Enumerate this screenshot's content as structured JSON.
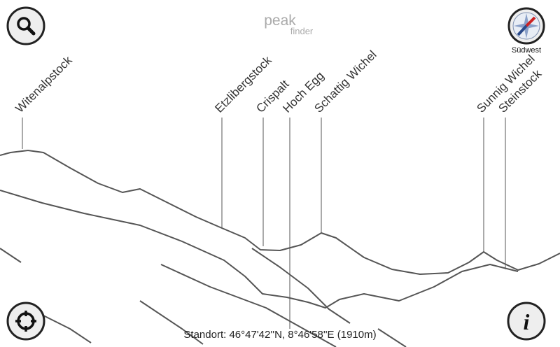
{
  "header": {
    "logo_main": "peak",
    "logo_sub": "finder"
  },
  "compass": {
    "label": "Südwest"
  },
  "peaks": [
    "Witenalpstock",
    "Etzlibergstock",
    "Crispalt",
    "Hoch Egg",
    "Schattig Wichel",
    "Sunnig Wichel",
    "Steinstock"
  ],
  "status": "Standort: 46°47'42''N, 8°46'58''E (1910m)"
}
